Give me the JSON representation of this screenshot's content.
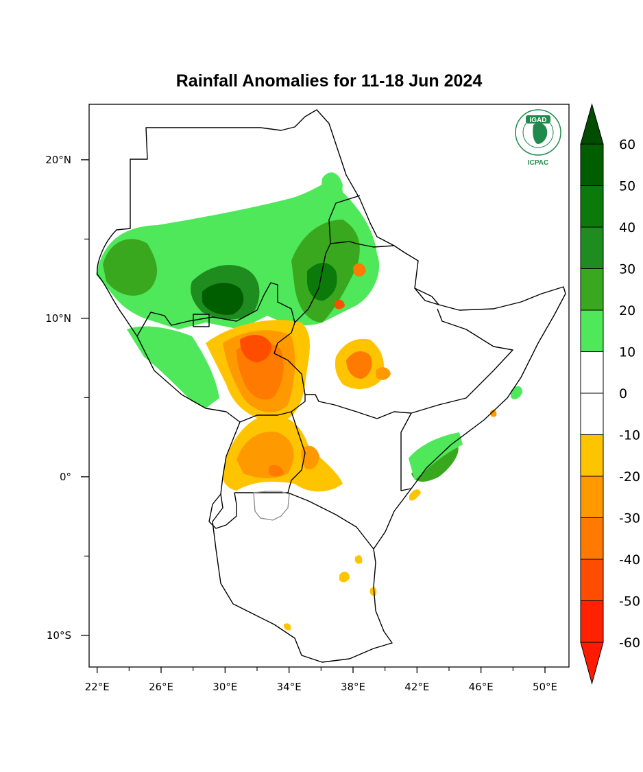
{
  "title": "Rainfall Anomalies for 11-18 Jun 2024",
  "logo": {
    "text_top": "IGAD",
    "text_bottom": "ICPAC",
    "color": "#1f8a4c"
  },
  "axes": {
    "x_ticks": [
      {
        "value": 22,
        "label": "22°E"
      },
      {
        "value": 26,
        "label": "26°E"
      },
      {
        "value": 30,
        "label": "30°E"
      },
      {
        "value": 34,
        "label": "34°E"
      },
      {
        "value": 38,
        "label": "38°E"
      },
      {
        "value": 42,
        "label": "42°E"
      },
      {
        "value": 46,
        "label": "46°E"
      },
      {
        "value": 50,
        "label": "50°E"
      }
    ],
    "y_ticks": [
      {
        "value": 20,
        "label": "20°N"
      },
      {
        "value": 10,
        "label": "10°N"
      },
      {
        "value": 0,
        "label": "0°"
      },
      {
        "value": -10,
        "label": "10°S"
      }
    ],
    "x_range": [
      21.5,
      51.5
    ],
    "y_range": [
      -12,
      23.5
    ]
  },
  "colorbar": {
    "labels": [
      "60",
      "50",
      "40",
      "30",
      "20",
      "10",
      "0",
      "-10",
      "-20",
      "-30",
      "-40",
      "-50",
      "-60"
    ],
    "bins": [
      {
        "color": "#005e00"
      },
      {
        "color": "#0b7a0b"
      },
      {
        "color": "#1e8c1e"
      },
      {
        "color": "#3aa81f"
      },
      {
        "color": "#4ee85a"
      },
      {
        "color": "#ffffff"
      },
      {
        "color": "#ffffff"
      },
      {
        "color": "#ffc400"
      },
      {
        "color": "#ff9900"
      },
      {
        "color": "#ff7a00"
      },
      {
        "color": "#ff4d00"
      },
      {
        "color": "#ff2200"
      }
    ],
    "top_arrow_color": "#004d00",
    "bottom_arrow_color": "#ff1a00"
  }
}
